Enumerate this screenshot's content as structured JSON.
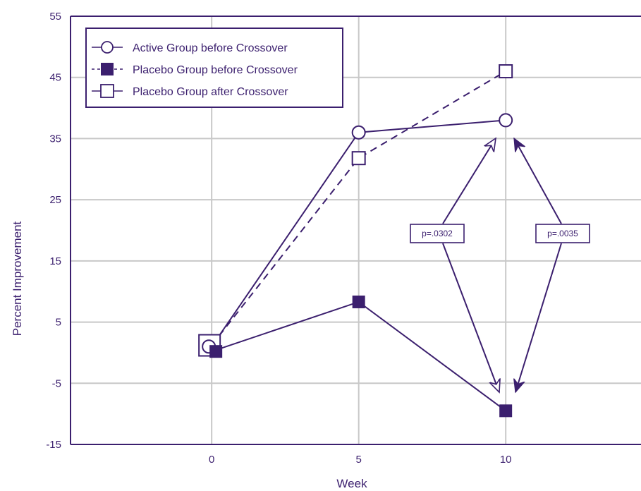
{
  "chart_data": {
    "type": "line",
    "xlabel": "Week",
    "ylabel": "Percent Improvement",
    "x_ticks": [
      "0",
      "5",
      "10"
    ],
    "x_values": [
      0,
      5,
      10
    ],
    "xlim": [
      -4.8,
      14.6
    ],
    "ylim": [
      -15,
      55
    ],
    "y_ticks": [
      "55",
      "45",
      "35",
      "25",
      "15",
      "5",
      "-5",
      "-15"
    ],
    "y_tick_values": [
      55,
      45,
      35,
      25,
      15,
      5,
      -5,
      -15
    ],
    "grid": true,
    "legend_position": "top-left",
    "colors": {
      "ink": "#3b1f6e",
      "grid": "#c8c8c8",
      "background": "#ffffff"
    },
    "series": [
      {
        "name": "Active Group before Crossover",
        "marker": "open-circle",
        "line": "solid",
        "x": [
          0,
          5,
          10
        ],
        "y": [
          1.0,
          36.0,
          38.0
        ]
      },
      {
        "name": "Placebo Group before Crossover",
        "marker": "filled-square",
        "line": "solid",
        "x": [
          0,
          5,
          10
        ],
        "y": [
          0.2,
          8.3,
          -9.5
        ]
      },
      {
        "name": "Placebo Group after Crossover",
        "marker": "open-square",
        "line": "dashed",
        "x": [
          0,
          5,
          10
        ],
        "y": [
          1.2,
          31.8,
          46.0
        ]
      }
    ],
    "annotations": [
      {
        "text": "p=.0302",
        "arrow_style": "open",
        "from_y": 35.0,
        "to_y": -8.0,
        "x": 10
      },
      {
        "text": "p=.0035",
        "arrow_style": "filled",
        "from_y": 35.0,
        "to_y": -8.0,
        "x": 10
      }
    ]
  }
}
